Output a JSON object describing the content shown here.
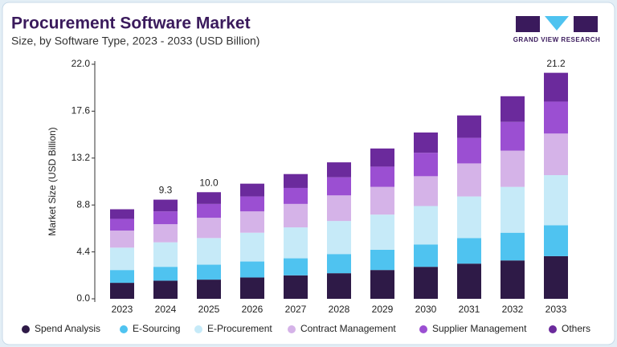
{
  "header": {
    "logo_text": "GRAND VIEW RESEARCH"
  },
  "chart_data": {
    "type": "stacked-bar",
    "title": "Procurement Software Market",
    "subtitle": "Size, by Software Type, 2023 - 2033 (USD Billion)",
    "y_label": "Market Size (USD Billion)",
    "categories": [
      "2023",
      "2024",
      "2025",
      "2026",
      "2027",
      "2028",
      "2029",
      "2030",
      "2031",
      "2032",
      "2033"
    ],
    "series": [
      {
        "name": "Spend Analysis",
        "color": "#2e1a47",
        "values": [
          1.5,
          1.7,
          1.8,
          2.0,
          2.2,
          2.4,
          2.7,
          3.0,
          3.3,
          3.6,
          4.0
        ]
      },
      {
        "name": "E-Sourcing",
        "color": "#4fc3f0",
        "values": [
          1.2,
          1.3,
          1.4,
          1.5,
          1.6,
          1.8,
          1.9,
          2.1,
          2.4,
          2.6,
          2.9
        ]
      },
      {
        "name": "E-Procurement",
        "color": "#c6eaf8",
        "values": [
          2.1,
          2.3,
          2.5,
          2.7,
          2.9,
          3.1,
          3.3,
          3.6,
          3.9,
          4.3,
          4.7
        ]
      },
      {
        "name": "Contract Management",
        "color": "#d5b3e8",
        "values": [
          1.6,
          1.7,
          1.9,
          2.0,
          2.2,
          2.4,
          2.6,
          2.8,
          3.1,
          3.4,
          3.9
        ]
      },
      {
        "name": "Supplier Management",
        "color": "#9b4fd2",
        "values": [
          1.1,
          1.2,
          1.3,
          1.4,
          1.5,
          1.7,
          1.9,
          2.2,
          2.4,
          2.7,
          3.0
        ]
      },
      {
        "name": "Others",
        "color": "#6b2a9c",
        "values": [
          0.9,
          1.1,
          1.1,
          1.2,
          1.3,
          1.4,
          1.7,
          1.9,
          2.1,
          2.4,
          2.7
        ]
      }
    ],
    "annotations": [
      {
        "category": "2024",
        "value": 9.3,
        "label": "9.3"
      },
      {
        "category": "2025",
        "value": 10.0,
        "label": "10.0"
      },
      {
        "category": "2033",
        "value": 21.2,
        "label": "21.2"
      }
    ],
    "ylim": [
      0,
      22
    ],
    "yticks": [
      {
        "value": 0,
        "label": "0.0"
      },
      4.4,
      8.8,
      13.2,
      17.6,
      {
        "value": 22,
        "label": "22.0"
      }
    ],
    "grid": false
  }
}
